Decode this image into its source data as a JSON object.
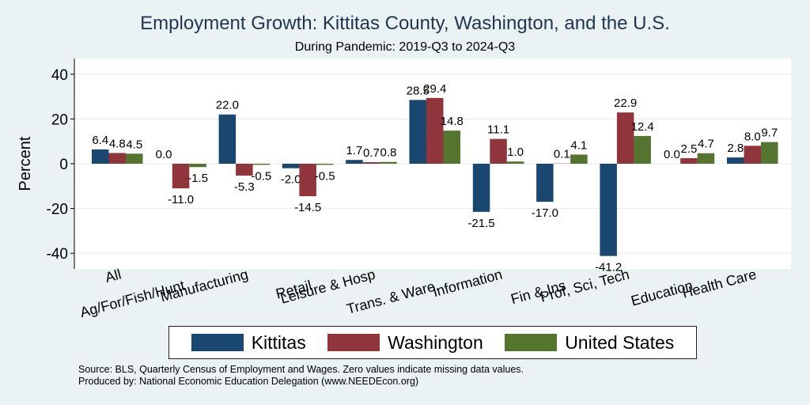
{
  "header": {
    "title": "Employment Growth: Kittitas County, Washington, and the U.S.",
    "subtitle": "During Pandemic: 2019-Q3 to 2024-Q3"
  },
  "colors": {
    "background": "#eaf2f3",
    "plot_area": "#ffffff",
    "grid": "#e5ecec"
  },
  "chart_data": {
    "type": "bar",
    "title": "Employment Growth: Kittitas County, Washington, and the U.S.",
    "subtitle": "During Pandemic: 2019-Q3 to 2024-Q3",
    "xlabel": "",
    "ylabel": "Percent",
    "ylim": [
      -47,
      47
    ],
    "yticks": [
      -40,
      -20,
      0,
      20,
      40
    ],
    "yticklabels": [
      "-40",
      "-20",
      "0",
      "20",
      "40"
    ],
    "grid": true,
    "legend_position": "bottom",
    "categories": [
      "All",
      "Ag/For/Fish/Hunt",
      "Manufacturing",
      "Retail",
      "Leisure & Hosp",
      "Trans. & Ware.",
      "Information",
      "Fin & Ins",
      "Prof, Sci, Tech",
      "Education",
      "Health Care"
    ],
    "series": [
      {
        "name": "Kittitas",
        "color": "#1a476f",
        "values": [
          6.4,
          0.0,
          22.0,
          -2.0,
          1.7,
          28.5,
          -21.5,
          -17.0,
          -41.2,
          0.0,
          2.8
        ],
        "labels": [
          "6.4",
          "0.0",
          "22.0",
          "-2.0",
          "1.7",
          "28.5",
          "-21.5",
          "-17.0",
          "-41.2",
          "0.0",
          "2.8"
        ]
      },
      {
        "name": "Washington",
        "color": "#90353b",
        "values": [
          4.8,
          -11.0,
          -5.3,
          -14.5,
          0.7,
          29.4,
          11.1,
          0.1,
          22.9,
          2.5,
          8.0
        ],
        "labels": [
          "4.8",
          "-11.0",
          "-5.3",
          "-14.5",
          "0.7",
          "29.4",
          "11.1",
          "0.1",
          "22.9",
          "2.5",
          "8.0"
        ]
      },
      {
        "name": "United States",
        "color": "#55752f",
        "values": [
          4.5,
          -1.5,
          -0.5,
          -0.5,
          0.8,
          14.8,
          1.0,
          4.1,
          12.4,
          4.7,
          9.7
        ],
        "labels": [
          "4.5",
          "-1.5",
          "-0.5",
          "-0.5",
          "0.8",
          "14.8",
          "1.0",
          "4.1",
          "12.4",
          "4.7",
          "9.7"
        ]
      }
    ]
  },
  "footer": {
    "source": "Source: BLS, Quarterly Census of Employment and Wages. Zero values indicate missing data values.",
    "produced_by": "Produced by: National Economic Education Delegation (www.NEEDEcon.org)"
  }
}
